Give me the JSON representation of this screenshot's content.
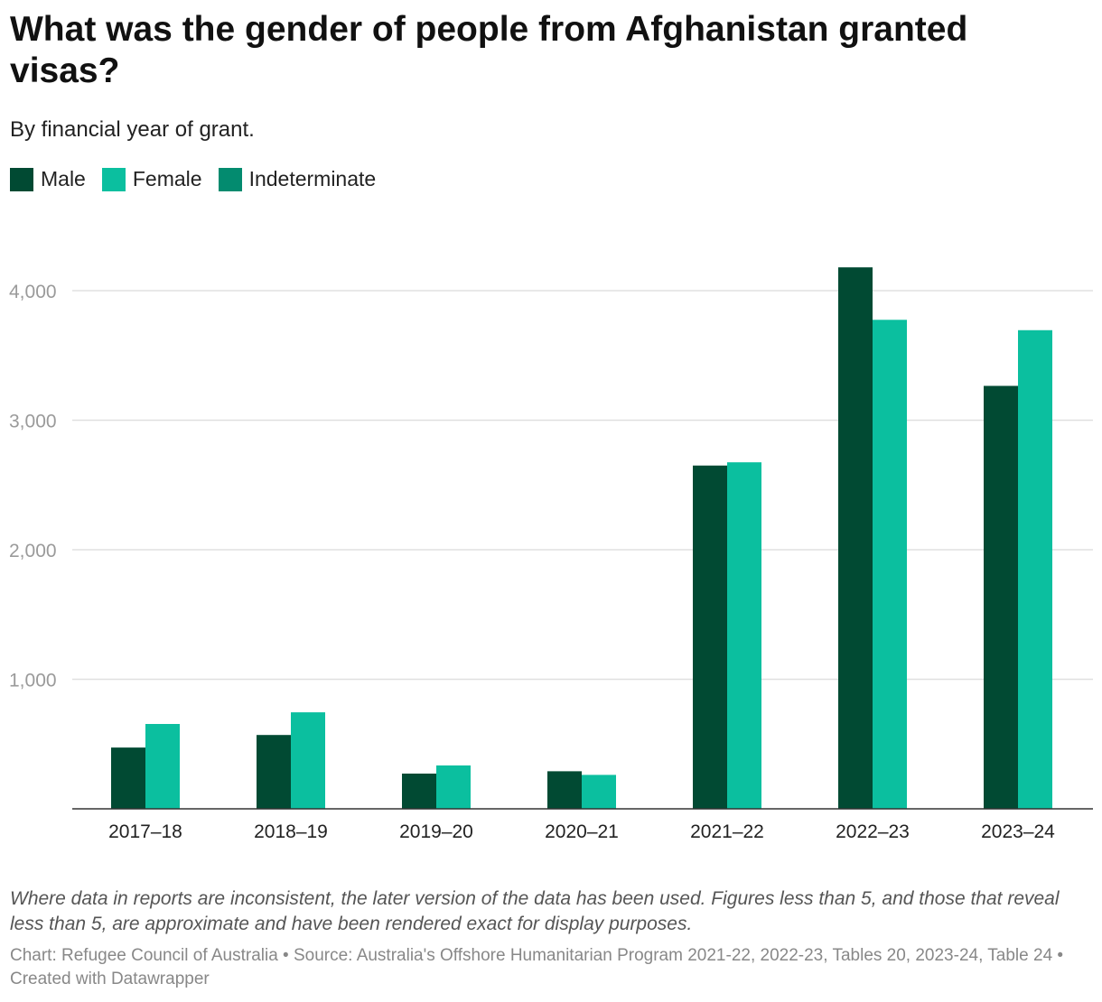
{
  "title": "What was the gender of people from Afghanistan granted visas?",
  "subtitle": "By financial year of grant.",
  "legend": [
    {
      "label": "Male",
      "color": "#014a33"
    },
    {
      "label": "Female",
      "color": "#0bbf9f"
    },
    {
      "label": "Indeterminate",
      "color": "#038b6f"
    }
  ],
  "chart_data": {
    "type": "bar",
    "title": "What was the gender of people from Afghanistan granted visas?",
    "subtitle": "By financial year of grant.",
    "xlabel": "",
    "ylabel": "",
    "categories": [
      "2017–18",
      "2018–19",
      "2019–20",
      "2020–21",
      "2021–22",
      "2022–23",
      "2023–24"
    ],
    "series": [
      {
        "name": "Male",
        "color": "#014a33",
        "values": [
          473,
          570,
          272,
          290,
          2650,
          4180,
          3265
        ]
      },
      {
        "name": "Female",
        "color": "#0bbf9f",
        "values": [
          655,
          745,
          335,
          262,
          2675,
          3775,
          3695
        ]
      },
      {
        "name": "Indeterminate",
        "color": "#038b6f",
        "values": [
          0,
          0,
          0,
          0,
          0,
          0,
          0
        ]
      }
    ],
    "yticks": [
      1000,
      2000,
      3000,
      4000
    ],
    "ytick_labels": [
      "1,000",
      "2,000",
      "3,000",
      "4,000"
    ],
    "ylim": [
      0,
      4400
    ],
    "grid": true,
    "legend_position": "top-left"
  },
  "note": "Where data in reports are inconsistent, the later version of the data has been used. Figures less than 5, and those that reveal less than 5, are approximate and have been rendered exact for display purposes.",
  "credits": "Chart: Refugee Council of Australia • Source: Australia's Offshore Humanitarian Program 2021-22, 2022-23, Tables 20, 2023-24, Table 24 • Created with Datawrapper"
}
